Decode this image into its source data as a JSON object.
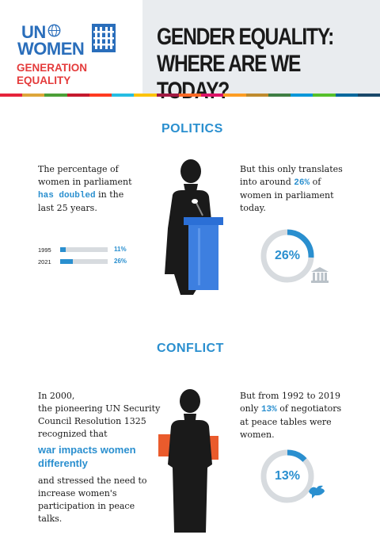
{
  "header": {
    "logo_un": "UN",
    "logo_women": "WOMEN",
    "logo_tagline": "GENERATION EQUALITY",
    "title_line1": "GENDER EQUALITY:",
    "title_line2": "WHERE ARE WE TODAY?"
  },
  "stripe_colors": [
    "#e5243b",
    "#dda63a",
    "#4c9f38",
    "#c5192d",
    "#ff3a21",
    "#26bde2",
    "#fcc30b",
    "#a21942",
    "#fd6925",
    "#dd1367",
    "#fd9d24",
    "#bf8b2e",
    "#3f7e44",
    "#0a97d9",
    "#56c02b",
    "#00689d",
    "#19486a"
  ],
  "politics": {
    "title": "POLITICS",
    "left_text_1": "The percentage of",
    "left_text_2": "women in parliament",
    "left_highlight": "has doubled",
    "left_text_3": " in the",
    "left_text_4": "last 25 years.",
    "bars": [
      {
        "year": "1995",
        "value": 11,
        "label": "11%"
      },
      {
        "year": "2021",
        "value": 26,
        "label": "26%"
      }
    ],
    "right_text_1": "But this only translates",
    "right_text_2a": "into around ",
    "right_highlight": "26%",
    "right_text_2b": " of",
    "right_text_3": "women in parliament",
    "right_text_4": "today.",
    "donut_value": 26,
    "donut_label": "26%"
  },
  "conflict": {
    "title": "CONFLICT",
    "left_text_1": "In 2000,",
    "left_text_2": "the pioneering UN Security",
    "left_text_3": "Council Resolution 1325",
    "left_text_4": "recognized that",
    "left_highlight_1": "war impacts women",
    "left_highlight_2": "differently",
    "left_text_5": "and stressed the need to",
    "left_text_6": "increase women's",
    "left_text_7": "participation in peace",
    "left_text_8": "talks.",
    "right_text_1": "But from 1992 to 2019",
    "right_text_2a": "only ",
    "right_highlight": "13%",
    "right_text_2b": " of negotiators",
    "right_text_3": "at peace tables were",
    "right_text_4": "women.",
    "donut_value": 13,
    "donut_label": "13%"
  },
  "colors": {
    "accent_blue": "#2a8fcf",
    "logo_blue": "#2a6ebb",
    "tagline_red": "#e43b3b",
    "podium_blue": "#3d7fe0",
    "folder_orange": "#ea5b2c",
    "silhouette": "#1a1a1a"
  },
  "icons": {
    "podium": "podium-icon",
    "parliament": "parliament-icon",
    "dove": "dove-icon",
    "folder": "folder-icon"
  }
}
